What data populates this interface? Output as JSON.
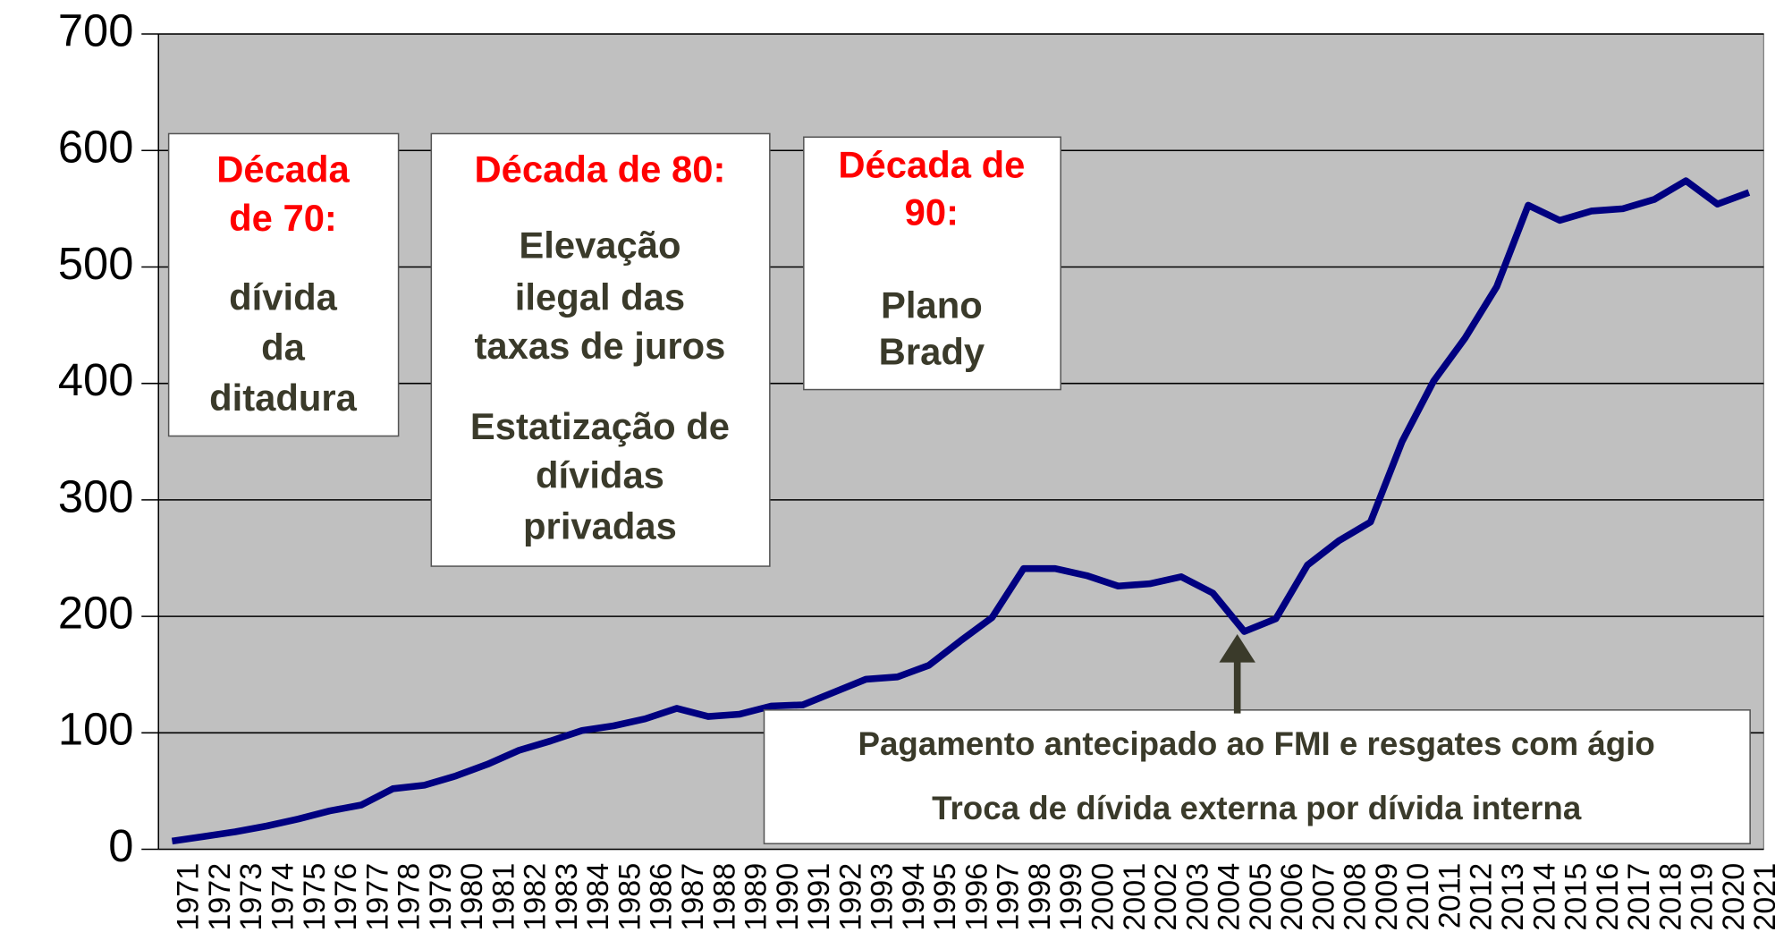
{
  "chart_data": {
    "type": "line",
    "categories": [
      "1971",
      "1972",
      "1973",
      "1974",
      "1975",
      "1976",
      "1977",
      "1978",
      "1979",
      "1980",
      "1981",
      "1982",
      "1983",
      "1984",
      "1985",
      "1986",
      "1987",
      "1988",
      "1989",
      "1990",
      "1991",
      "1992",
      "1993",
      "1994",
      "1995",
      "1996",
      "1997",
      "1998",
      "1999",
      "2000",
      "2001",
      "2002",
      "2003",
      "2004",
      "2005",
      "2006",
      "2007",
      "2008",
      "2009",
      "2010",
      "2011",
      "2012",
      "2013",
      "2014",
      "2015",
      "2016",
      "2017",
      "2018",
      "2019",
      "2020",
      "2021"
    ],
    "series": [
      {
        "color": "#000080",
        "values": [
          7,
          11,
          15,
          20,
          26,
          33,
          38,
          52,
          55,
          63,
          73,
          85,
          93,
          102,
          106,
          112,
          121,
          114,
          116,
          123,
          124,
          135,
          146,
          148,
          158,
          179,
          199,
          241,
          241,
          235,
          226,
          228,
          234,
          220,
          187,
          198,
          244,
          265,
          281,
          350,
          402,
          439,
          483,
          553,
          540,
          548,
          550,
          558,
          574,
          554,
          564
        ]
      }
    ],
    "ylim": [
      0,
      700
    ],
    "yticks": [
      0,
      100,
      200,
      300,
      400,
      500,
      600,
      700
    ],
    "grid": true,
    "annotations": [
      {
        "heading": [
          "Década",
          "de 70:"
        ],
        "body": [
          "dívida",
          "da",
          "ditadura"
        ]
      },
      {
        "heading": [
          "Década de 80:"
        ],
        "body": [
          "Elevação",
          "ilegal das",
          "taxas de juros",
          "Estatização de",
          "dívidas",
          "privadas"
        ]
      },
      {
        "heading": [
          "Década de",
          "90:"
        ],
        "body": [
          "Plano",
          "Brady"
        ]
      },
      {
        "heading": [],
        "body": [
          "Pagamento antecipado ao FMI e resgates com ágio",
          "Troca de dívida externa por dívida interna"
        ]
      }
    ]
  }
}
